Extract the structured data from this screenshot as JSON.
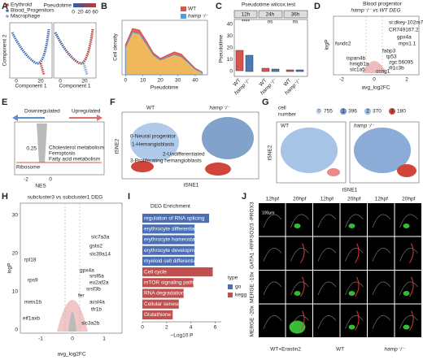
{
  "panel_labels": [
    "A",
    "B",
    "C",
    "D",
    "E",
    "F",
    "G",
    "H",
    "I",
    "J"
  ],
  "A": {
    "legend": [
      "Erythroid",
      "Blood_Progenitors",
      "Macrophage"
    ],
    "colorbar_title": "Pseudotime",
    "colorbar_ticks": [
      "0",
      "20",
      "40",
      "60"
    ],
    "xlabel": "Component 1",
    "ylabel": "Component 2",
    "xticks": [
      "0",
      "20"
    ]
  },
  "chart_data": [
    {
      "type": "area",
      "xlabel": "Pseudotime",
      "ylabel": "Cell density",
      "x": [
        0,
        4,
        8,
        12,
        16,
        20,
        24,
        28,
        32,
        36,
        40,
        44
      ],
      "series": [
        {
          "name": "WT",
          "color": "#d9534f",
          "values": [
            0.55,
            0.85,
            0.82,
            0.62,
            0.4,
            0.3,
            0.36,
            0.42,
            0.38,
            0.25,
            0.12,
            0.05
          ]
        },
        {
          "name": "hamp⁻/⁻",
          "color": "#5b9bd5",
          "values": [
            0.5,
            0.78,
            0.75,
            0.56,
            0.36,
            0.27,
            0.32,
            0.37,
            0.33,
            0.22,
            0.1,
            0.04
          ]
        }
      ],
      "xlim": [
        -2,
        47
      ],
      "ylim": [
        0,
        1
      ],
      "xticks": [
        0,
        10,
        20,
        30,
        40
      ]
    },
    {
      "type": "barh",
      "title": "DEG Enrichment",
      "xlabel": "−Log10 P",
      "legend_title": "type",
      "categories": [
        "regulation of RNA splicing",
        "erythrocyte differentiation",
        "erythrocyte homeostasis",
        "erythrocyte development",
        "myeloid cell differentiation",
        "Cell cycle",
        "mTOR signaling pathway",
        "RNA degradation",
        "Cellular senescence",
        "Glutathione metabolism"
      ],
      "series": [
        {
          "name": "go",
          "color": "#4a6fb5",
          "values": [
            5.5,
            4.3,
            4.3,
            4.3,
            4.3,
            null,
            null,
            null,
            null,
            null
          ]
        },
        {
          "name": "kegg",
          "color": "#c0504d",
          "values": [
            null,
            null,
            null,
            null,
            null,
            5.8,
            4.2,
            3.4,
            3.0,
            2.5
          ]
        }
      ],
      "xlim": [
        0,
        6.5
      ],
      "xticks": [
        0,
        2,
        4,
        6
      ]
    }
  ],
  "C": {
    "title": "Pseudotime wilcox.test",
    "ylabel": "Pseudotime",
    "facets": [
      "12h",
      "24h",
      "36h"
    ],
    "significance": [
      "****",
      "ns",
      "ns"
    ],
    "groups": [
      "WT",
      "hamp⁻/⁻"
    ],
    "yticks": [
      "40",
      "30",
      "20",
      "10",
      "0"
    ]
  },
  "D": {
    "title": "Blood progenitor",
    "subtitle": "hamp⁻/⁻ vs WT DEG",
    "xlabel": "avg_log2FC",
    "ylabel": "logP",
    "xticks": [
      "-2",
      "0",
      "2"
    ],
    "genes": [
      "si:dkey-102m7.3",
      "CR749167.2",
      "gpx4a",
      "mps1.1",
      "fundc2",
      "fabp3",
      "tp53",
      "tspan4b",
      "zgc:56095",
      "hmgb1a",
      "ifi1c3b",
      "slc1a5",
      "ccng1"
    ]
  },
  "E": {
    "left": "Downregulated",
    "right": "Upregulated",
    "pathways": [
      "Cholesterol metabolism",
      "Ferroptosis",
      "Fatty acid metabolism",
      "Ribosome"
    ],
    "xlabel": "NES",
    "xticks": [
      "-2",
      "0"
    ],
    "ytick": "0.25"
  },
  "F": {
    "groups": [
      "WT",
      "hamp⁻/⁻"
    ],
    "clusters": [
      "0-Neural progenitor",
      "1-Hemangioblasts",
      "2-Undifferentiated",
      "3-Proliferating hemangioblasts"
    ],
    "xlabel": "tSNE1",
    "ylabel": "tSNE2"
  },
  "G": {
    "legend_title": [
      "cell",
      "number"
    ],
    "clusters": [
      "0",
      "1",
      "2",
      "3"
    ],
    "counts": [
      "755",
      "396",
      "370",
      "180"
    ],
    "groups": [
      "WT",
      "hamp⁻/⁻"
    ],
    "xlabel": "tSNE1",
    "ylabel": "tSNE2"
  },
  "H": {
    "title": "subcluster3 vs subcluster1 DEG",
    "xlabel": "avg_log2FC",
    "ylabel": "logP",
    "xticks": [
      "-1",
      "0",
      "1"
    ],
    "yticks": [
      "30",
      "20",
      "10",
      "0"
    ],
    "genes_down": [
      "rpl18",
      "rps9",
      "meis1b",
      "eif1axb"
    ],
    "genes_up": [
      "slc7a3a",
      "gsto2",
      "slc39a14",
      "gpx4a",
      "srsf6a",
      "eu2af2a",
      "srsf3b",
      "fer",
      "acsl4a",
      "tfr1b",
      "slc3a2b"
    ]
  },
  "J": {
    "columns": [
      "12hpf",
      "20hpf",
      "12hpf",
      "20hpf",
      "12hpf",
      "20hpf"
    ],
    "rows": [
      "SO2/3 -PROX3",
      "GATA1 -RFP",
      "MERGE -10x",
      "MERGE -20x"
    ],
    "scale": "100μm",
    "groups": [
      "WT+Erastin2",
      "WT",
      "hamp⁻/⁻"
    ]
  }
}
